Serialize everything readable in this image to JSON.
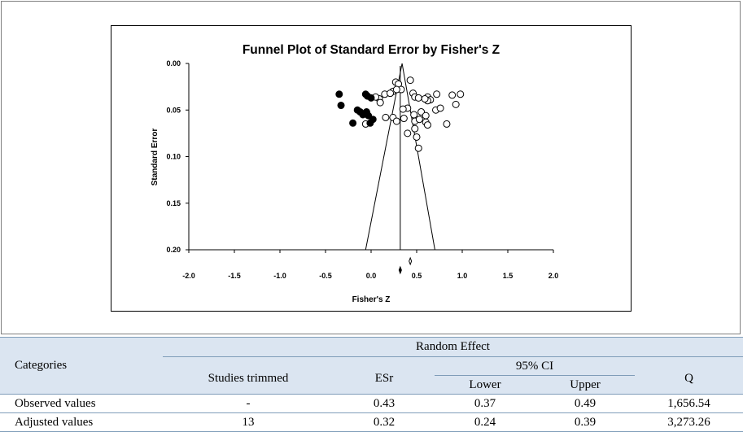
{
  "chart_data": {
    "type": "scatter",
    "title": "Funnel Plot of Standard Error by Fisher's Z",
    "xlabel": "Fisher's Z",
    "ylabel": "Standard Error",
    "xlim": [
      -2.0,
      2.0
    ],
    "ylim": [
      0.0,
      0.2
    ],
    "y_inverted": true,
    "x_ticks": [
      "-2.0",
      "-1.5",
      "-1.0",
      "-0.5",
      "0.0",
      "0.5",
      "1.0",
      "1.5",
      "2.0"
    ],
    "y_ticks": [
      "0.00",
      "0.05",
      "0.10",
      "0.15",
      "0.20"
    ],
    "grid": false,
    "funnel_center": 0.32,
    "funnel_upper_center": 0.34,
    "funnel_base": [
      -0.06,
      0.7
    ],
    "series": [
      {
        "marker": "open-circle",
        "points": [
          [
            0.27,
            0.02
          ],
          [
            0.3,
            0.022
          ],
          [
            0.43,
            0.018
          ],
          [
            0.33,
            0.028
          ],
          [
            0.24,
            0.03
          ],
          [
            0.28,
            0.028
          ],
          [
            0.15,
            0.033
          ],
          [
            0.21,
            0.032
          ],
          [
            0.46,
            0.032
          ],
          [
            0.48,
            0.036
          ],
          [
            0.52,
            0.037
          ],
          [
            0.62,
            0.036
          ],
          [
            0.65,
            0.039
          ],
          [
            0.72,
            0.033
          ],
          [
            0.89,
            0.034
          ],
          [
            0.98,
            0.033
          ],
          [
            0.62,
            0.04
          ],
          [
            0.59,
            0.038
          ],
          [
            0.09,
            0.038
          ],
          [
            0.05,
            0.036
          ],
          [
            0.1,
            0.042
          ],
          [
            0.4,
            0.048
          ],
          [
            0.47,
            0.055
          ],
          [
            0.35,
            0.049
          ],
          [
            0.55,
            0.052
          ],
          [
            0.6,
            0.056
          ],
          [
            0.71,
            0.05
          ],
          [
            0.76,
            0.048
          ],
          [
            0.93,
            0.044
          ],
          [
            0.16,
            0.058
          ],
          [
            0.24,
            0.058
          ],
          [
            0.28,
            0.062
          ],
          [
            0.36,
            0.059
          ],
          [
            0.48,
            0.062
          ],
          [
            0.53,
            0.06
          ],
          [
            0.6,
            0.063
          ],
          [
            0.62,
            0.066
          ],
          [
            0.83,
            0.065
          ],
          [
            -0.06,
            0.065
          ],
          [
            0.48,
            0.07
          ],
          [
            0.4,
            0.075
          ],
          [
            0.5,
            0.079
          ],
          [
            0.52,
            0.091
          ]
        ]
      },
      {
        "marker": "filled-circle",
        "points": [
          [
            -0.35,
            0.033
          ],
          [
            -0.33,
            0.045
          ],
          [
            -0.15,
            0.05
          ],
          [
            -0.12,
            0.052
          ],
          [
            -0.09,
            0.055
          ],
          [
            -0.05,
            0.052
          ],
          [
            -0.03,
            0.056
          ],
          [
            0.02,
            0.06
          ],
          [
            -0.2,
            0.064
          ],
          [
            -0.01,
            0.064
          ],
          [
            -0.06,
            0.033
          ],
          [
            -0.04,
            0.035
          ],
          [
            0.0,
            0.037
          ]
        ]
      }
    ],
    "diamonds": [
      {
        "marker": "open-diamond",
        "center": 0.43
      },
      {
        "marker": "filled-diamond",
        "center": 0.32
      }
    ]
  },
  "table": {
    "categories_label": "Categories",
    "random_effect_label": "Random  Effect",
    "studies_trimmed_label": "Studies trimmed",
    "esr_label": "ESr",
    "ci_label": "95%  CI",
    "lower_label": "Lower",
    "upper_label": "Upper",
    "q_label": "Q",
    "rows": [
      {
        "category": "Observed values",
        "studies_trimmed": "-",
        "esr": "0.43",
        "lower": "0.37",
        "upper": "0.49",
        "q": "1,656.54"
      },
      {
        "category": "Adjusted values",
        "studies_trimmed": "13",
        "esr": "0.32",
        "lower": "0.24",
        "upper": "0.39",
        "q": "3,273.26"
      }
    ]
  }
}
